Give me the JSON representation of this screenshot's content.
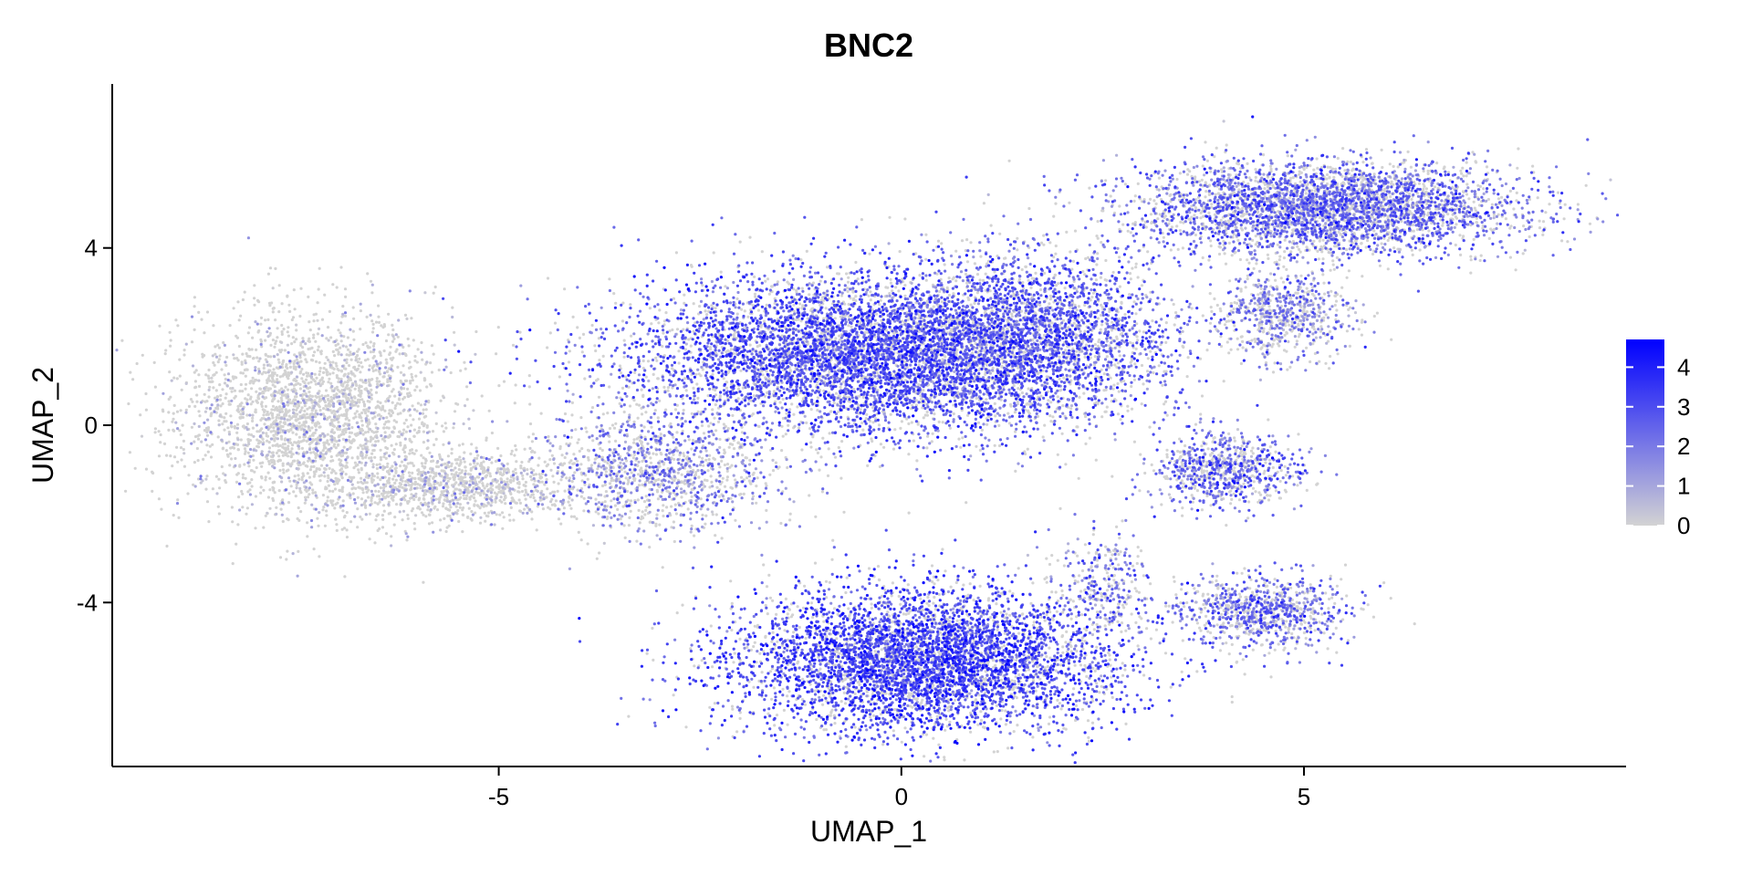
{
  "chart_data": {
    "type": "scatter",
    "title": "BNC2",
    "xlabel": "UMAP_1",
    "ylabel": "UMAP_2",
    "xlim": [
      -9.8,
      9.0
    ],
    "ylim": [
      -7.7,
      7.7
    ],
    "x_ticks": [
      {
        "value": -5,
        "label": "-5"
      },
      {
        "value": 0,
        "label": "0"
      },
      {
        "value": 5,
        "label": "5"
      }
    ],
    "y_ticks": [
      {
        "value": -4,
        "label": "-4"
      },
      {
        "value": 0,
        "label": "0"
      },
      {
        "value": 4,
        "label": "4"
      }
    ],
    "grid": false,
    "legend": {
      "placement": "right",
      "type": "colorbar",
      "min": 0,
      "max": 4.7,
      "ticks": [
        {
          "value": 0,
          "label": "0"
        },
        {
          "value": 1,
          "label": "1"
        },
        {
          "value": 2,
          "label": "2"
        },
        {
          "value": 3,
          "label": "3"
        },
        {
          "value": 4,
          "label": "4"
        }
      ]
    },
    "color_scale": {
      "low": "#d3d3d3",
      "high": "#0000ff"
    },
    "clusters": [
      {
        "cx": -7.3,
        "cy": 0.3,
        "sx": 1.1,
        "sy": 1.5,
        "n": 2600,
        "expr": 0.25
      },
      {
        "cx": -5.5,
        "cy": -1.4,
        "sx": 1.0,
        "sy": 0.5,
        "n": 1000,
        "expr": 0.5
      },
      {
        "cx": -3.0,
        "cy": -1.0,
        "sx": 1.0,
        "sy": 0.9,
        "n": 1200,
        "expr": 1.8
      },
      {
        "cx": -0.5,
        "cy": 1.6,
        "sx": 1.9,
        "sy": 1.2,
        "n": 6200,
        "expr": 2.8
      },
      {
        "cx": 1.6,
        "cy": 2.0,
        "sx": 1.2,
        "sy": 1.3,
        "n": 2500,
        "expr": 2.6
      },
      {
        "cx": 0.3,
        "cy": -5.3,
        "sx": 1.6,
        "sy": 1.1,
        "n": 5200,
        "expr": 3.0
      },
      {
        "cx": 5.3,
        "cy": 4.9,
        "sx": 1.6,
        "sy": 0.7,
        "n": 3800,
        "expr": 2.3
      },
      {
        "cx": 4.7,
        "cy": 2.5,
        "sx": 0.6,
        "sy": 0.7,
        "n": 700,
        "expr": 1.8
      },
      {
        "cx": 4.0,
        "cy": -1.0,
        "sx": 0.6,
        "sy": 0.55,
        "n": 800,
        "expr": 2.4
      },
      {
        "cx": 4.5,
        "cy": -4.2,
        "sx": 0.7,
        "sy": 0.55,
        "n": 900,
        "expr": 2.2
      },
      {
        "cx": 2.5,
        "cy": -3.5,
        "sx": 0.4,
        "sy": 0.8,
        "n": 300,
        "expr": 2.0
      }
    ]
  }
}
